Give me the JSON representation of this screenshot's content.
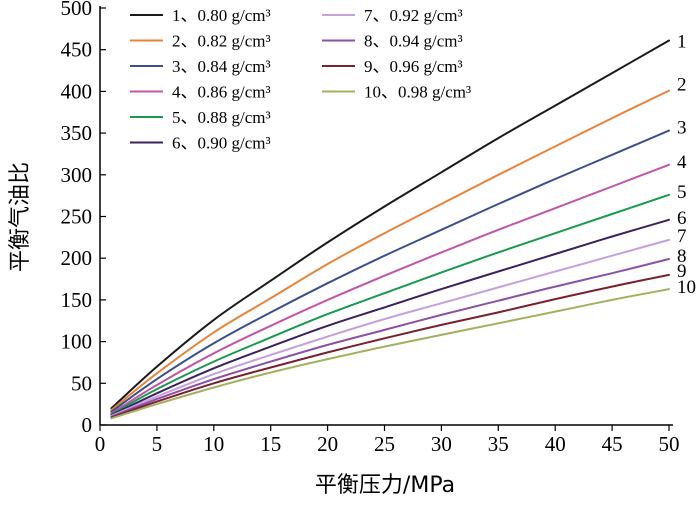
{
  "chart_data": {
    "type": "line",
    "xlabel": "平衡压力/MPa",
    "ylabel": "平衡气油比",
    "xlim": [
      0,
      50
    ],
    "ylim": [
      0,
      500
    ],
    "x_ticks": [
      "0",
      "5",
      "10",
      "15",
      "20",
      "25",
      "30",
      "35",
      "40",
      "45",
      "50"
    ],
    "y_ticks": [
      "0",
      "50",
      "100",
      "150",
      "200",
      "250",
      "300",
      "350",
      "400",
      "450",
      "500"
    ],
    "grid": false,
    "legend_position": "top-left",
    "series": [
      {
        "name": "1、0.80 g/cm³",
        "end_label": "1",
        "color": "#1a1a1a",
        "x": [
          1,
          5,
          10,
          15,
          20,
          25,
          30,
          35,
          40,
          45,
          50
        ],
        "y": [
          20,
          70,
          126,
          173,
          219,
          262,
          303,
          344,
          383,
          422,
          461
        ]
      },
      {
        "name": "2、0.82 g/cm³",
        "end_label": "2",
        "color": "#e8833a",
        "x": [
          1,
          5,
          10,
          15,
          20,
          25,
          30,
          35,
          40,
          45,
          50
        ],
        "y": [
          18,
          62,
          111,
          152,
          193,
          230,
          265,
          300,
          334,
          368,
          401
        ]
      },
      {
        "name": "3、0.84 g/cm³",
        "end_label": "3",
        "color": "#3c4f8c",
        "x": [
          1,
          5,
          10,
          15,
          20,
          25,
          30,
          35,
          40,
          45,
          50
        ],
        "y": [
          16,
          55,
          98,
          135,
          170,
          203,
          234,
          265,
          295,
          324,
          353
        ]
      },
      {
        "name": "4、0.86 g/cm³",
        "end_label": "4",
        "color": "#c155a6",
        "x": [
          1,
          5,
          10,
          15,
          20,
          25,
          30,
          35,
          40,
          45,
          50
        ],
        "y": [
          14,
          48,
          86,
          119,
          150,
          179,
          207,
          234,
          260,
          286,
          312
        ]
      },
      {
        "name": "5、0.88 g/cm³",
        "end_label": "5",
        "color": "#1a9950",
        "x": [
          1,
          5,
          10,
          15,
          20,
          25,
          30,
          35,
          40,
          45,
          50
        ],
        "y": [
          13,
          43,
          76,
          105,
          133,
          158,
          183,
          207,
          230,
          253,
          276
        ]
      },
      {
        "name": "6、0.90 g/cm³",
        "end_label": "6",
        "color": "#3a2260",
        "x": [
          1,
          5,
          10,
          15,
          20,
          25,
          30,
          35,
          40,
          45,
          50
        ],
        "y": [
          12,
          38,
          68,
          94,
          119,
          141,
          163,
          184,
          205,
          226,
          246
        ]
      },
      {
        "name": "7、0.92 g/cm³",
        "end_label": "7",
        "color": "#c4a0dc",
        "x": [
          1,
          5,
          10,
          15,
          20,
          25,
          30,
          35,
          40,
          45,
          50
        ],
        "y": [
          11,
          34,
          61,
          84,
          106,
          127,
          146,
          165,
          184,
          203,
          222
        ]
      },
      {
        "name": "8、0.94 g/cm³",
        "end_label": "8",
        "color": "#8a52a6",
        "x": [
          1,
          5,
          10,
          15,
          20,
          25,
          30,
          35,
          40,
          45,
          50
        ],
        "y": [
          10,
          31,
          55,
          76,
          96,
          114,
          132,
          149,
          166,
          182,
          199
        ]
      },
      {
        "name": "9、0.96 g/cm³",
        "end_label": "9",
        "color": "#7a2030",
        "x": [
          1,
          5,
          10,
          15,
          20,
          25,
          30,
          35,
          40,
          45,
          50
        ],
        "y": [
          9,
          28,
          50,
          69,
          87,
          104,
          120,
          135,
          151,
          166,
          180
        ]
      },
      {
        "name": "10、0.98 g/cm³",
        "end_label": "10",
        "color": "#a3b060",
        "x": [
          1,
          5,
          10,
          15,
          20,
          25,
          30,
          35,
          40,
          45,
          50
        ],
        "y": [
          8,
          25,
          45,
          63,
          79,
          94,
          108,
          122,
          136,
          150,
          163
        ]
      }
    ]
  }
}
